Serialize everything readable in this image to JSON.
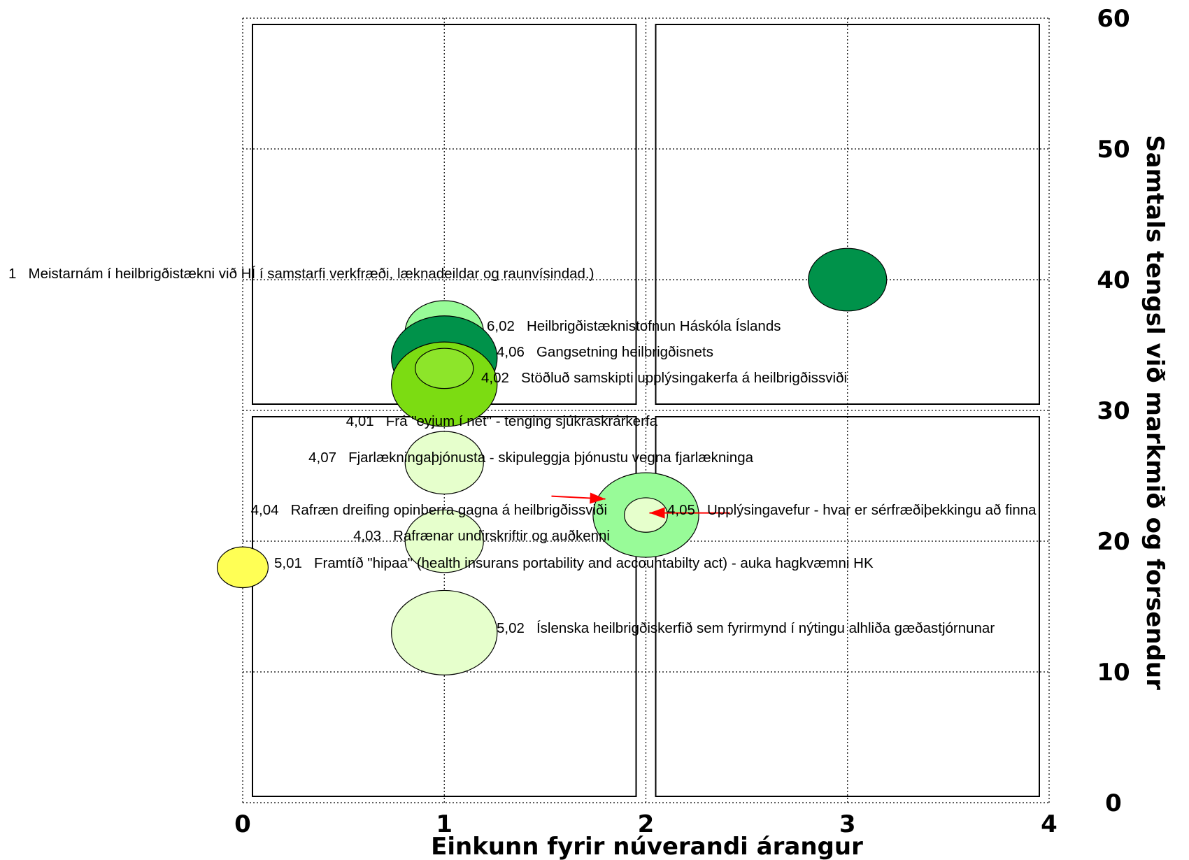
{
  "chart_data": {
    "type": "scatter",
    "subtype": "bubble",
    "xlabel": "Einkunn fyrir núverandi árangur",
    "ylabel": "Samtals tengsl við markmið og forsendur",
    "xlim": [
      0,
      4
    ],
    "ylim": [
      0,
      60
    ],
    "xticks": [
      "0",
      "1",
      "2",
      "3",
      "4"
    ],
    "yticks": [
      "0",
      "10",
      "20",
      "30",
      "40",
      "50",
      "60"
    ],
    "grid": true,
    "quadrant_boxes": true,
    "points": [
      {
        "label": "1   Meistarnám í heilbrigðistækni við HÍ í samstarfi verkfræði, læknadeildar og raunvísindad.)",
        "x": 3,
        "y": 40,
        "size": 1.0,
        "color": "#00924a",
        "inner_color": null
      },
      {
        "label": "6,02   Heilbrigðistæknistofnun Háskóla Íslands",
        "x": 1,
        "y": 36,
        "size": 1.0,
        "color": "#98fb98",
        "inner_color": null
      },
      {
        "label": "4,06   Gangsetning heilbrigðisnets",
        "x": 1,
        "y": 34,
        "size": 1.35,
        "color": "#00924a",
        "inner_color": null
      },
      {
        "label": "4,02   Stöðluð samskipti upplýsingakerfa á heilbrigðissviði",
        "x": 1,
        "y": 32,
        "size": 1.35,
        "color": "#7cdc12",
        "inner_color": "#8de52a"
      },
      {
        "label": "4,01   Frá \"eyjum í net\" - tenging sjúkraskrárkerfa",
        "x": 1,
        "y": 30,
        "size": 0.0,
        "color": null,
        "inner_color": null
      },
      {
        "label": "4,07   Fjarlækningaþjónusta - skipuleggja þjónustu vegna fjarlækninga",
        "x": 1,
        "y": 26,
        "size": 1.0,
        "color": "#e6ffcc",
        "inner_color": null
      },
      {
        "label": "4,04   Rafræn dreifing opinberra gagna á heilbrigðissviði",
        "x": 2,
        "y": 22,
        "size": 1.35,
        "color": "#98fb98",
        "inner_color": null
      },
      {
        "label": "4,05   Upplýsingavefur - hvar er sérfræðiþekkingu að finna",
        "x": 2,
        "y": 22,
        "size": 0.55,
        "color": "#e6ffcc",
        "inner_color": null
      },
      {
        "label": "4,03   Rafrænar undirskriftir og auðkenni",
        "x": 1,
        "y": 20,
        "size": 1.0,
        "color": "#e6ffcc",
        "inner_color": null
      },
      {
        "label": "5,01   Framtíð \"hipaa\" (health insurans portability and accountabilty act) - auka hagkvæmni HK",
        "x": 0,
        "y": 18,
        "size": 0.65,
        "color": "#ffff55",
        "inner_color": null
      },
      {
        "label": "5,02   Íslenska heilbrigðiskerfið sem fyrirmynd í nýtingu alhliða gæðastjórnunar",
        "x": 1,
        "y": 13,
        "size": 1.35,
        "color": "#e6ffcc",
        "inner_color": null
      }
    ]
  },
  "ui": {
    "axis_color": "#000000",
    "arrow_color": "#ff0000"
  }
}
